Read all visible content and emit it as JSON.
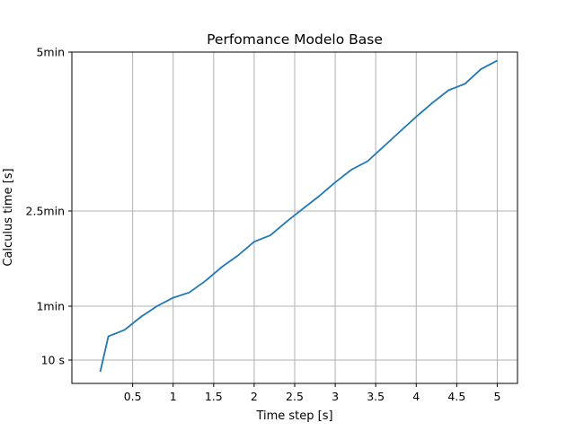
{
  "chart_data": {
    "type": "line",
    "title": "Perfomance Modelo Base",
    "xlabel": "Time step [s]",
    "ylabel": "Calculus time [s]",
    "grid": true,
    "line_color": "#1f77b4",
    "grid_color": "#b0b0b0",
    "x_ticks": [
      {
        "value": 0.5,
        "label": "0.5"
      },
      {
        "value": 1,
        "label": "1"
      },
      {
        "value": 1.5,
        "label": "1.5"
      },
      {
        "value": 2,
        "label": "2"
      },
      {
        "value": 2.5,
        "label": "2.5"
      },
      {
        "value": 3,
        "label": "3"
      },
      {
        "value": 3.5,
        "label": "3.5"
      },
      {
        "value": 4,
        "label": "4"
      },
      {
        "value": 4.5,
        "label": "4.5"
      },
      {
        "value": 5,
        "label": "5"
      }
    ],
    "y_ticks": [
      {
        "value": 10,
        "label": "10 s"
      },
      {
        "value": 60,
        "label": "1min"
      },
      {
        "value": 150,
        "label": "2.5min"
      },
      {
        "value": 300,
        "label": "5min"
      }
    ],
    "xlim": [
      -0.25,
      5.25
    ],
    "ylim": [
      -10,
      300
    ],
    "series": [
      {
        "x": [
          0.1,
          0.2,
          0.4,
          0.6,
          0.8,
          1.0,
          1.2,
          1.4,
          1.6,
          1.8,
          2.0,
          2.2,
          2.4,
          2.6,
          2.8,
          3.0,
          3.2,
          3.4,
          3.6,
          3.8,
          4.0,
          4.2,
          4.4,
          4.6,
          4.8,
          5.0
        ],
        "y": [
          0,
          32,
          38,
          50,
          60,
          68,
          73,
          84,
          97,
          108,
          121,
          127,
          140,
          152,
          164,
          177,
          189,
          197,
          211,
          225,
          239,
          252,
          264,
          270,
          284,
          292
        ]
      }
    ]
  }
}
